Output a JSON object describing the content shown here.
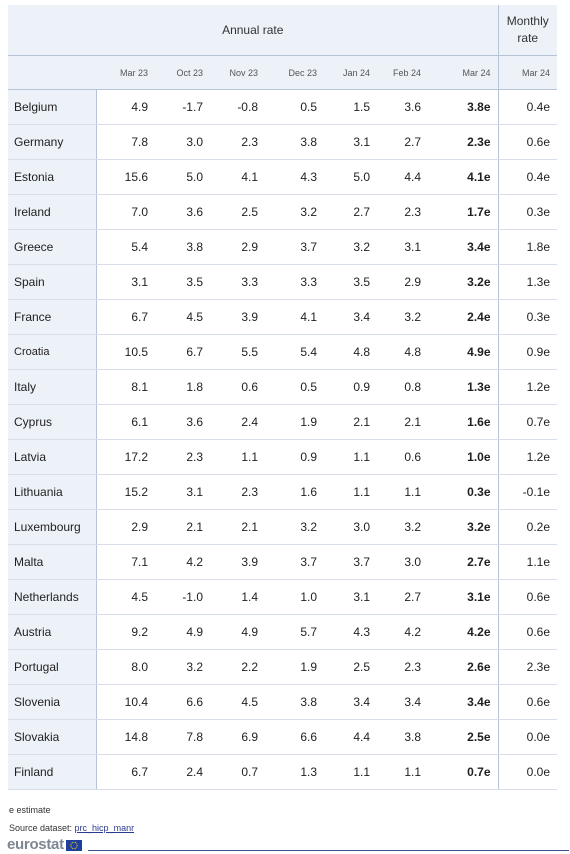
{
  "header": {
    "annual_title": "Annual rate",
    "monthly_title_line1": "Monthly",
    "monthly_title_line2": "rate",
    "columns": [
      "Mar 23",
      "Oct 23",
      "Nov 23",
      "Dec 23",
      "Jan 24",
      "Feb 24",
      "Mar 24",
      "Mar 24"
    ]
  },
  "rows": [
    {
      "country": "Belgium",
      "values": [
        "4.9",
        "-1.7",
        "-0.8",
        "0.5",
        "1.5",
        "3.6",
        "3.8e",
        "0.4e"
      ]
    },
    {
      "country": "Germany",
      "values": [
        "7.8",
        "3.0",
        "2.3",
        "3.8",
        "3.1",
        "2.7",
        "2.3e",
        "0.6e"
      ]
    },
    {
      "country": "Estonia",
      "values": [
        "15.6",
        "5.0",
        "4.1",
        "4.3",
        "5.0",
        "4.4",
        "4.1e",
        "0.4e"
      ]
    },
    {
      "country": "Ireland",
      "values": [
        "7.0",
        "3.6",
        "2.5",
        "3.2",
        "2.7",
        "2.3",
        "1.7e",
        "0.3e"
      ]
    },
    {
      "country": "Greece",
      "values": [
        "5.4",
        "3.8",
        "2.9",
        "3.7",
        "3.2",
        "3.1",
        "3.4e",
        "1.8e"
      ]
    },
    {
      "country": "Spain",
      "values": [
        "3.1",
        "3.5",
        "3.3",
        "3.3",
        "3.5",
        "2.9",
        "3.2e",
        "1.3e"
      ]
    },
    {
      "country": "France",
      "values": [
        "6.7",
        "4.5",
        "3.9",
        "4.1",
        "3.4",
        "3.2",
        "2.4e",
        "0.3e"
      ]
    },
    {
      "country": "Croatia",
      "values": [
        "10.5",
        "6.7",
        "5.5",
        "5.4",
        "4.8",
        "4.8",
        "4.9e",
        "0.9e"
      ],
      "small": true
    },
    {
      "country": "Italy",
      "values": [
        "8.1",
        "1.8",
        "0.6",
        "0.5",
        "0.9",
        "0.8",
        "1.3e",
        "1.2e"
      ]
    },
    {
      "country": "Cyprus",
      "values": [
        "6.1",
        "3.6",
        "2.4",
        "1.9",
        "2.1",
        "2.1",
        "1.6e",
        "0.7e"
      ]
    },
    {
      "country": "Latvia",
      "values": [
        "17.2",
        "2.3",
        "1.1",
        "0.9",
        "1.1",
        "0.6",
        "1.0e",
        "1.2e"
      ]
    },
    {
      "country": "Lithuania",
      "values": [
        "15.2",
        "3.1",
        "2.3",
        "1.6",
        "1.1",
        "1.1",
        "0.3e",
        "-0.1e"
      ]
    },
    {
      "country": "Luxembourg",
      "values": [
        "2.9",
        "2.1",
        "2.1",
        "3.2",
        "3.0",
        "3.2",
        "3.2e",
        "0.2e"
      ]
    },
    {
      "country": "Malta",
      "values": [
        "7.1",
        "4.2",
        "3.9",
        "3.7",
        "3.7",
        "3.0",
        "2.7e",
        "1.1e"
      ]
    },
    {
      "country": "Netherlands",
      "values": [
        "4.5",
        "-1.0",
        "1.4",
        "1.0",
        "3.1",
        "2.7",
        "3.1e",
        "0.6e"
      ]
    },
    {
      "country": "Austria",
      "values": [
        "9.2",
        "4.9",
        "4.9",
        "5.7",
        "4.3",
        "4.2",
        "4.2e",
        "0.6e"
      ]
    },
    {
      "country": "Portugal",
      "values": [
        "8.0",
        "3.2",
        "2.2",
        "1.9",
        "2.5",
        "2.3",
        "2.6e",
        "2.3e"
      ]
    },
    {
      "country": "Slovenia",
      "values": [
        "10.4",
        "6.6",
        "4.5",
        "3.8",
        "3.4",
        "3.4",
        "3.4e",
        "0.6e"
      ]
    },
    {
      "country": "Slovakia",
      "values": [
        "14.8",
        "7.8",
        "6.9",
        "6.6",
        "4.4",
        "3.8",
        "2.5e",
        "0.0e"
      ]
    },
    {
      "country": "Finland",
      "values": [
        "6.7",
        "2.4",
        "0.7",
        "1.3",
        "1.1",
        "1.1",
        "0.7e",
        "0.0e"
      ]
    }
  ],
  "notes": {
    "estimate": "e estimate",
    "source_label": "Source dataset: ",
    "source_link": "prc_hicp_manr"
  },
  "logo": {
    "text": "eurostat",
    "flag_color": "#1f3f9a",
    "star_color": "#ffd617"
  }
}
